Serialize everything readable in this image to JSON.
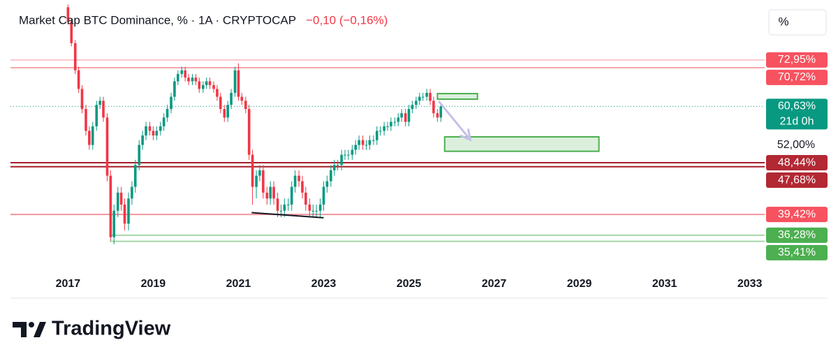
{
  "chart_data": {
    "type": "candlestick",
    "title": "Market Cap BTC Dominance, % · 1A · CRYPTOCAP",
    "change": "−0,10 (−0,16%)",
    "scale_button": "%",
    "brand": "TradingView",
    "log_scale": true,
    "up_color": "#089981",
    "down_color": "#f23645",
    "xlim": [
      2015.65,
      2033.35
    ],
    "xticks": [
      2017,
      2019,
      2021,
      2023,
      2025,
      2027,
      2029,
      2031,
      2033
    ],
    "ylim": [
      31.3,
      90.1
    ],
    "yticks": [
      {
        "value": 52,
        "label": "52,00%"
      }
    ],
    "x": [
      2017.0,
      2017.08,
      2017.17,
      2017.25,
      2017.33,
      2017.42,
      2017.5,
      2017.58,
      2017.67,
      2017.75,
      2017.83,
      2017.92,
      2018.0,
      2018.08,
      2018.17,
      2018.25,
      2018.33,
      2018.42,
      2018.5,
      2018.58,
      2018.67,
      2018.75,
      2018.83,
      2018.92,
      2019.0,
      2019.08,
      2019.17,
      2019.25,
      2019.33,
      2019.42,
      2019.5,
      2019.58,
      2019.67,
      2019.75,
      2019.83,
      2019.92,
      2020.0,
      2020.08,
      2020.17,
      2020.25,
      2020.33,
      2020.42,
      2020.5,
      2020.58,
      2020.67,
      2020.75,
      2020.83,
      2020.92,
      2021.0,
      2021.08,
      2021.17,
      2021.25,
      2021.33,
      2021.42,
      2021.5,
      2021.58,
      2021.67,
      2021.75,
      2021.83,
      2021.92,
      2022.0,
      2022.08,
      2022.17,
      2022.25,
      2022.33,
      2022.42,
      2022.5,
      2022.58,
      2022.67,
      2022.75,
      2022.83,
      2022.92,
      2023.0,
      2023.08,
      2023.17,
      2023.25,
      2023.33,
      2023.42,
      2023.5,
      2023.58,
      2023.67,
      2023.75,
      2023.83,
      2023.92,
      2024.0,
      2024.08,
      2024.17,
      2024.25,
      2024.33,
      2024.42,
      2024.5,
      2024.58,
      2024.67,
      2024.75,
      2024.83,
      2024.92,
      2025.0,
      2025.08,
      2025.17,
      2025.25,
      2025.33,
      2025.42,
      2025.5,
      2025.58,
      2025.67,
      2025.75
    ],
    "open": [
      90,
      85,
      78,
      70,
      65,
      60,
      55,
      52,
      56,
      61,
      62,
      58,
      46,
      36,
      40,
      43,
      41,
      38,
      42,
      44,
      48,
      52,
      54,
      56,
      55,
      54,
      55,
      56,
      58,
      60,
      63,
      67,
      69,
      70,
      68,
      67,
      68,
      67,
      65,
      66,
      67,
      66,
      65,
      63,
      60,
      58,
      61,
      64,
      70,
      63,
      62,
      60,
      50,
      44,
      46,
      47,
      43,
      42,
      44,
      42,
      40,
      40,
      41,
      41,
      44,
      46,
      45,
      43,
      41,
      40,
      40,
      40,
      41,
      44,
      45,
      47,
      48,
      48,
      50,
      50,
      50,
      51,
      52,
      53,
      52,
      52,
      53,
      53,
      55,
      55,
      56,
      56,
      57,
      57,
      58,
      59,
      57,
      60,
      61,
      62,
      63,
      63,
      64,
      62,
      59,
      58
    ],
    "high": [
      91,
      86,
      79,
      71,
      66,
      61,
      56,
      57,
      62,
      63,
      63,
      59,
      47,
      41,
      44,
      44,
      42,
      43,
      45,
      49,
      53,
      55,
      57,
      57,
      56,
      56,
      57,
      59,
      61,
      64,
      68,
      70,
      71,
      71,
      69,
      69,
      69,
      68,
      67,
      68,
      68,
      67,
      66,
      64,
      61,
      62,
      65,
      71,
      72,
      64,
      63,
      61,
      51,
      47,
      48,
      48,
      44,
      45,
      45,
      43,
      41,
      42,
      42,
      45,
      47,
      47,
      46,
      44,
      42,
      41,
      41,
      42,
      45,
      46,
      48,
      49,
      49,
      51,
      51,
      51,
      52,
      53,
      54,
      54,
      53,
      54,
      54,
      56,
      56,
      57,
      57,
      58,
      58,
      59,
      60,
      60,
      61,
      62,
      63,
      64,
      64,
      65,
      65,
      63,
      60,
      61
    ],
    "low": [
      84,
      77,
      69,
      64,
      59,
      54,
      51,
      51,
      55,
      60,
      57,
      45,
      35.5,
      35,
      39,
      40,
      37,
      37,
      41,
      43,
      47,
      51,
      53,
      54,
      53,
      53,
      54,
      55,
      57,
      59,
      62,
      66,
      68,
      67,
      66,
      66,
      66,
      64,
      64,
      65,
      65,
      64,
      62,
      59,
      57,
      57,
      60,
      63,
      62,
      61,
      59,
      49,
      41,
      42,
      45,
      42,
      41,
      41,
      41,
      39,
      39,
      39,
      40,
      40,
      43,
      44,
      42,
      40,
      39,
      39,
      39,
      39,
      40,
      43,
      44,
      46,
      47,
      47,
      49,
      49,
      49,
      50,
      51,
      51,
      51,
      51,
      52,
      52,
      54,
      54,
      55,
      55,
      56,
      56,
      57,
      56,
      56,
      59,
      60,
      61,
      62,
      62,
      61,
      58,
      57,
      57
    ],
    "close": [
      85,
      78,
      70,
      65,
      60,
      55,
      52,
      56,
      61,
      62,
      58,
      46,
      36,
      40,
      43,
      41,
      38,
      42,
      44,
      48,
      52,
      54,
      56,
      55,
      54,
      55,
      56,
      58,
      60,
      63,
      67,
      69,
      70,
      68,
      67,
      68,
      67,
      65,
      66,
      67,
      66,
      65,
      63,
      60,
      58,
      61,
      64,
      70,
      63,
      62,
      60,
      50,
      44,
      46,
      47,
      43,
      42,
      44,
      42,
      40,
      40,
      41,
      41,
      44,
      46,
      45,
      43,
      41,
      40,
      40,
      40,
      41,
      44,
      45,
      47,
      48,
      48,
      50,
      50,
      50,
      51,
      52,
      53,
      52,
      52,
      53,
      53,
      55,
      55,
      56,
      56,
      57,
      57,
      58,
      59,
      57,
      60,
      61,
      62,
      63,
      63,
      64,
      62,
      59,
      58,
      60.63
    ],
    "price_lines": [
      {
        "value": 72.95,
        "label": "72,95%",
        "color": "#f7525f",
        "line_color": "#f9c6ca"
      },
      {
        "value": 70.72,
        "label": "70,72%",
        "color": "#f7525f",
        "line_color": "#f5a6ac"
      },
      {
        "value": 60.63,
        "label": "60,63%",
        "sublabel": "21d 0h",
        "color": "#089981",
        "line_color": "#089981",
        "dotted": true
      },
      {
        "value": 48.44,
        "label": "48,44%",
        "color": "#b22833",
        "line_color": "#a51d28"
      },
      {
        "value": 47.68,
        "label": "47,68%",
        "color": "#b22833",
        "line_color": "#a51d28"
      },
      {
        "value": 39.42,
        "label": "39,42%",
        "color": "#f7525f",
        "line_color": "#f0959b"
      },
      {
        "value": 36.28,
        "label": "36,28%",
        "color": "#4caf50",
        "line_color": "#a5d6a7",
        "from_x": 2017.98
      },
      {
        "value": 35.41,
        "label": "35,41%",
        "color": "#4caf50",
        "line_color": "#a5d6a7",
        "from_x": 2017.98
      }
    ],
    "drawings": {
      "boxes": [
        {
          "x": [
            2025.67,
            2026.61
          ],
          "y": [
            62.4,
            63.8
          ],
          "color": "#4caf50"
        },
        {
          "x": [
            2025.84,
            2029.46
          ],
          "y": [
            50.7,
            53.7
          ],
          "color": "#4caf50"
        }
      ],
      "trendline": {
        "x": [
          2021.31,
          2023.0
        ],
        "y": [
          39.7,
          38.9
        ],
        "color": "#131722"
      },
      "arrow": {
        "x": [
          2025.7,
          2026.44
        ],
        "y": [
          61.9,
          53.1
        ],
        "color": "#c5c0e8"
      }
    }
  }
}
